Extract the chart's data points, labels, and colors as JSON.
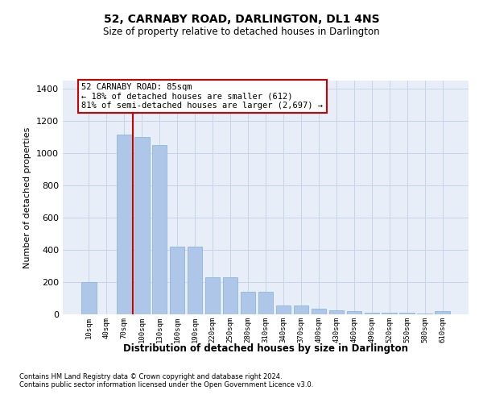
{
  "title": "52, CARNABY ROAD, DARLINGTON, DL1 4NS",
  "subtitle": "Size of property relative to detached houses in Darlington",
  "xlabel": "Distribution of detached houses by size in Darlington",
  "ylabel": "Number of detached properties",
  "categories": [
    "10sqm",
    "40sqm",
    "70sqm",
    "100sqm",
    "130sqm",
    "160sqm",
    "190sqm",
    "220sqm",
    "250sqm",
    "280sqm",
    "310sqm",
    "340sqm",
    "370sqm",
    "400sqm",
    "430sqm",
    "460sqm",
    "490sqm",
    "520sqm",
    "550sqm",
    "580sqm",
    "610sqm"
  ],
  "values": [
    200,
    0,
    1115,
    1100,
    1050,
    420,
    420,
    230,
    230,
    140,
    140,
    55,
    55,
    35,
    25,
    18,
    12,
    12,
    8,
    4,
    18
  ],
  "bar_color": "#aec6e8",
  "bar_edge_color": "#8fb8d8",
  "grid_color": "#c8d4e8",
  "background_color": "#e8eef8",
  "annotation_text": "52 CARNABY ROAD: 85sqm\n← 18% of detached houses are smaller (612)\n81% of semi-detached houses are larger (2,697) →",
  "annotation_box_color": "#ffffff",
  "annotation_box_edge_color": "#cc0000",
  "vline_color": "#cc0000",
  "ylim": [
    0,
    1450
  ],
  "yticks": [
    0,
    200,
    400,
    600,
    800,
    1000,
    1200,
    1400
  ],
  "footnote1": "Contains HM Land Registry data © Crown copyright and database right 2024.",
  "footnote2": "Contains public sector information licensed under the Open Government Licence v3.0."
}
